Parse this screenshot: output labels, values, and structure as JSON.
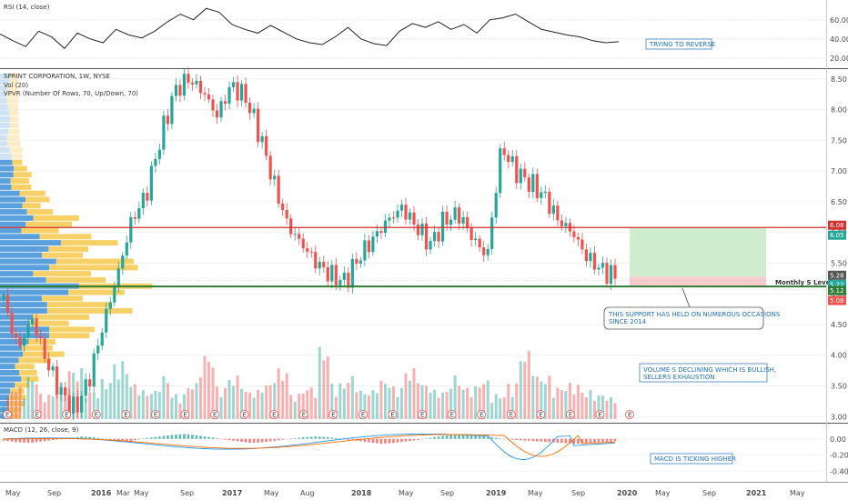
{
  "chart_data": {
    "type": "candlestick",
    "symbol_line": "SPRINT CORPORATION, 1W, NYSE",
    "indicators": [
      "Vol (20)",
      "VPVR (Number Of Rows, 70, Up/Down, 70)"
    ],
    "price_axis": {
      "ticks": [
        "8.50",
        "8.00",
        "7.50",
        "7.00",
        "6.50",
        "6.00",
        "5.50",
        "5.00",
        "4.50",
        "4.00",
        "3.50",
        "3.00"
      ],
      "range": [
        2.96,
        8.6
      ]
    },
    "rsi": {
      "title": "RSI (14, close)",
      "ticks": [
        "60.00",
        "40.00",
        "20.00"
      ],
      "range": [
        15,
        75
      ],
      "values": [
        45,
        38,
        32,
        48,
        42,
        30,
        46,
        40,
        36,
        50,
        44,
        41,
        48,
        58,
        66,
        60,
        72,
        68,
        55,
        50,
        46,
        54,
        47,
        40,
        36,
        34,
        42,
        52,
        40,
        35,
        33,
        48,
        56,
        52,
        58,
        50,
        55,
        46,
        60,
        62,
        66,
        58,
        50,
        47,
        44,
        42,
        38,
        36,
        37
      ]
    },
    "macd": {
      "title": "MACD (12, 26, close, 9)",
      "ticks": [
        "0.00",
        "-0.20",
        "-0.40"
      ],
      "range": [
        -0.46,
        0.12
      ],
      "histogram": [
        -0.02,
        -0.04,
        -0.05,
        -0.03,
        -0.01,
        0.01,
        0.03,
        0.02,
        -0.01,
        -0.04,
        -0.02,
        0.01,
        0.03,
        0.05,
        0.06,
        0.04,
        0.02,
        -0.01,
        -0.03,
        -0.05,
        -0.04,
        -0.02,
        0.0,
        0.02,
        0.03,
        0.02,
        0.0,
        -0.02,
        -0.04,
        -0.06,
        -0.05,
        -0.03,
        -0.01,
        0.02,
        0.04,
        0.06,
        0.05,
        0.03,
        0.01,
        -0.01,
        -0.02,
        -0.03,
        -0.04,
        -0.05,
        -0.06,
        -0.05,
        -0.04,
        -0.03
      ]
    },
    "time_axis": [
      "May",
      "Sep",
      "2016",
      "Mar",
      "May",
      "Sep",
      "2017",
      "May",
      "Aug",
      "2018",
      "May",
      "Sep",
      "2019",
      "May",
      "Sep",
      "2020",
      "May",
      "Sep",
      "2021",
      "May"
    ],
    "levels": {
      "resistance": 6.08,
      "support": 5.12
    },
    "price_tags": [
      "6.08",
      "6.05",
      "5.28",
      "5.22",
      "5.12",
      "5.08"
    ],
    "close_path": [
      4.9,
      4.1,
      4.6,
      3.9,
      3.4,
      3.1,
      3.6,
      4.5,
      5.3,
      6.2,
      6.6,
      7.5,
      8.3,
      8.5,
      8.3,
      7.9,
      8.4,
      8.2,
      7.6,
      6.8,
      6.1,
      5.8,
      5.5,
      5.3,
      5.2,
      5.6,
      5.9,
      6.2,
      6.4,
      6.1,
      5.8,
      6.2,
      6.3,
      5.9,
      5.6,
      7.4,
      7.0,
      6.8,
      6.6,
      6.2,
      6.0,
      5.6,
      5.4,
      5.28
    ],
    "volume_rel": [
      0.3,
      0.45,
      0.6,
      0.35,
      0.5,
      0.7,
      0.4,
      0.55,
      0.8,
      0.5,
      0.4,
      0.6,
      0.35,
      0.5,
      0.9,
      0.45,
      0.6,
      0.4,
      0.5,
      0.7,
      0.35,
      0.45,
      1.0,
      0.5,
      0.6,
      0.4,
      0.55,
      0.45,
      0.7,
      0.5,
      0.4,
      0.6,
      0.45,
      0.55,
      0.35,
      0.5,
      0.95,
      0.6,
      0.45,
      0.5,
      0.4,
      0.35,
      0.3
    ],
    "annotations": {
      "rsi_note": "TRYING TO REVERSE",
      "support_label": "Monthly S Level",
      "support_note": [
        "THIS SUPPORT HAS HELD ON NUMEROUS OCCASIONS",
        "SINCE 2014"
      ],
      "volume_note": [
        "VOLUME S DECLINING WHICH IS BULLISH,",
        "SELLERS EXHAUSTION"
      ],
      "macd_note": "MACD IS TICKING HIGHER"
    },
    "colors": {
      "up": "#26a69a",
      "down": "#ef5350",
      "resistance": "#d32f2f",
      "support": "#2e7d32",
      "vp_up": "#3d8fd6",
      "vp_down": "#f5c542",
      "target_zone": "#c8ebc8",
      "stop_zone": "#f5c6c6"
    },
    "earnings_markers": {
      "glyph": "E",
      "count": 22
    }
  }
}
